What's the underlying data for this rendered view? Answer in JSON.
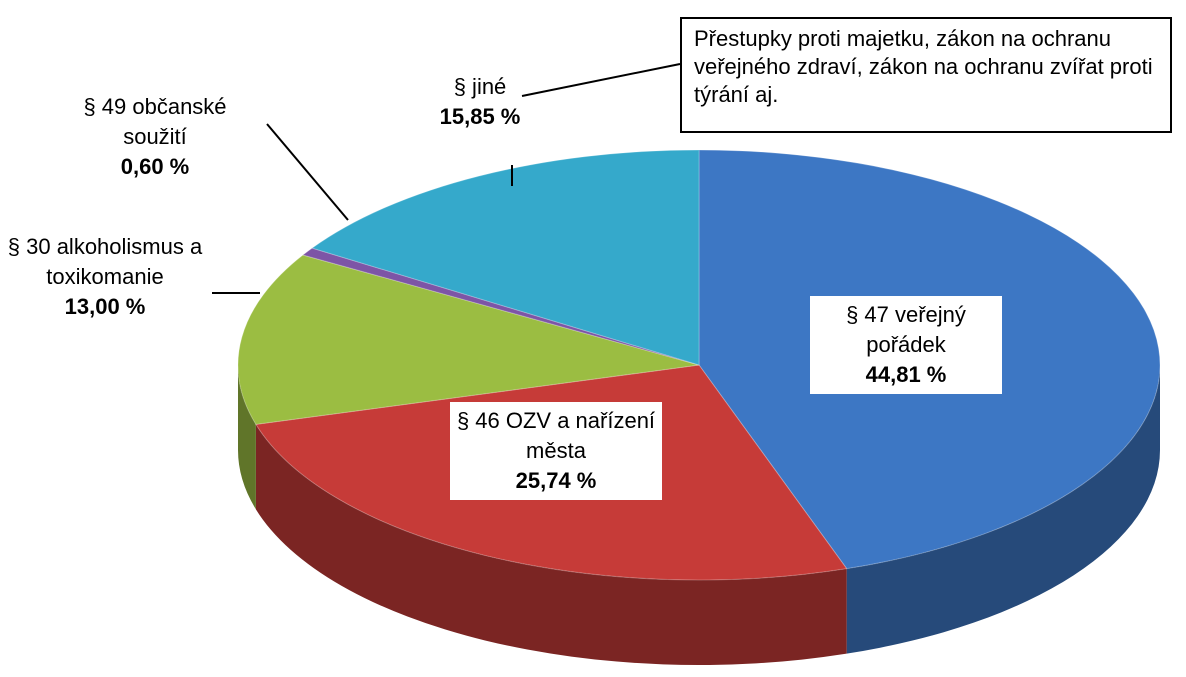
{
  "chart_data": {
    "type": "pie",
    "categories": [
      "§ 47 veřejný pořádek",
      "§ 46 OZV a nařízení města",
      "§ 30 alkoholismus a toxikomanie",
      "§ 49 občanské soužití",
      "§ jiné"
    ],
    "values": [
      44.81,
      25.74,
      13.0,
      0.6,
      15.85
    ],
    "value_labels": [
      "44,81 %",
      "25,74 %",
      "13,00 %",
      "0,60 %",
      "15,85 %"
    ],
    "colors": [
      "#3d77c4",
      "#c63b38",
      "#9bbd42",
      "#7d55a6",
      "#35a9cb"
    ],
    "annotation": "Přestupky proti majetku, zákon na ochranu veřejného zdraví, zákon na ochranu zvířat proti týrání aj."
  }
}
